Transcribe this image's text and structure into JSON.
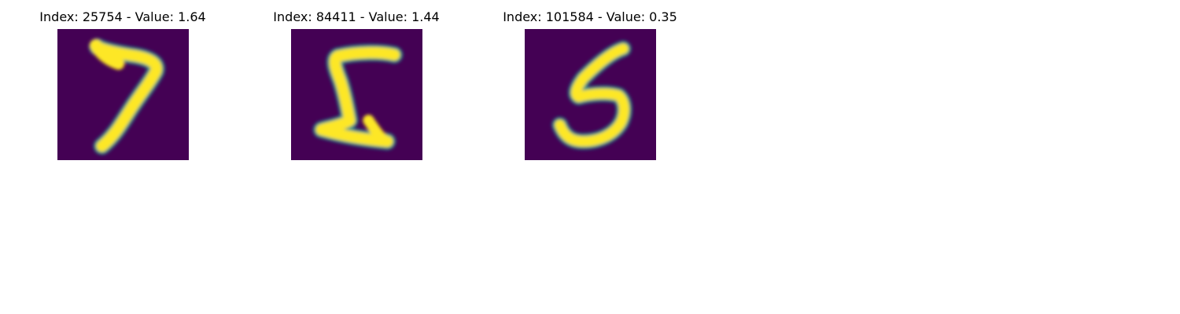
{
  "figure": {
    "background": "#ffffff",
    "colormap": {
      "low": "#440154",
      "mid": "#21918c",
      "high": "#fde725"
    },
    "panels": [
      {
        "title": "Index: 25754 - Value: 1.64",
        "index": 25754,
        "value": 1.64,
        "digit": "7"
      },
      {
        "title": "Index: 84411 - Value: 1.44",
        "index": 84411,
        "value": 1.44,
        "digit": "5"
      },
      {
        "title": "Index: 101584 - Value: 0.35",
        "index": 101584,
        "value": 0.35,
        "digit": "5"
      }
    ]
  }
}
